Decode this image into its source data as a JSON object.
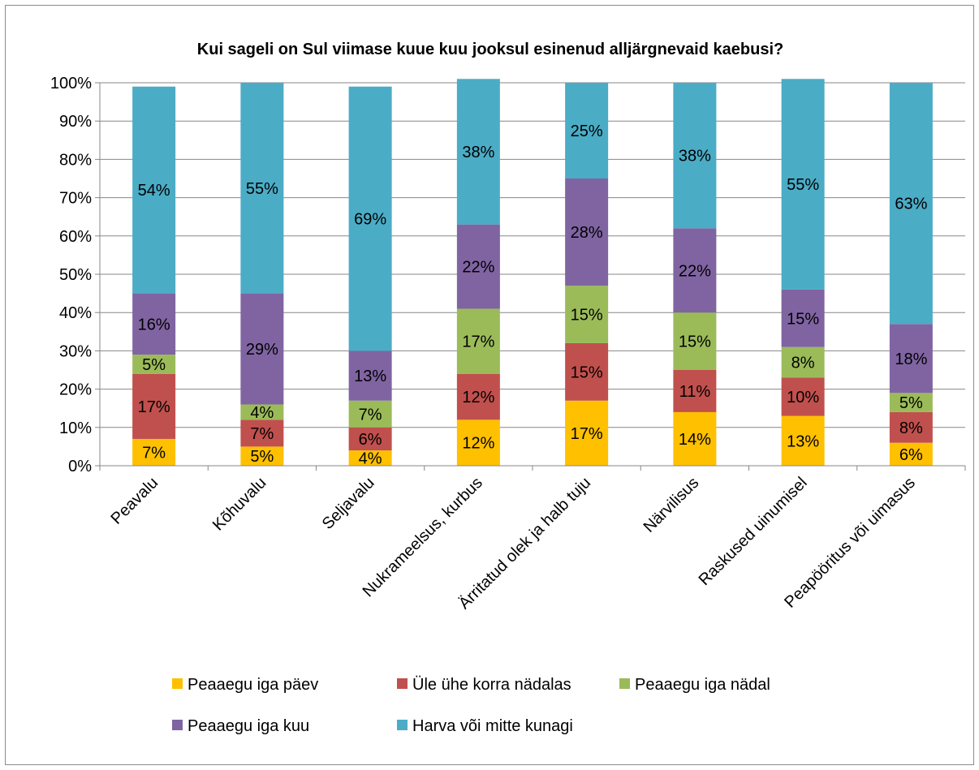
{
  "chart_data": {
    "type": "bar",
    "stacked": true,
    "title": "Kui sageli on Sul viimase kuue kuu jooksul esinenud alljärgnevaid kaebusi?",
    "categories": [
      "Peavalu",
      "Kõhuvalu",
      "Seljavalu",
      "Nukrameelsus, kurbus",
      "Ärritatud olek ja halb tuju",
      "Närvilisus",
      "Raskused uinumisel",
      "Peapööritus või uimasus"
    ],
    "ylim": [
      0,
      100
    ],
    "yticks": [
      "0%",
      "10%",
      "20%",
      "30%",
      "40%",
      "50%",
      "60%",
      "70%",
      "80%",
      "90%",
      "100%"
    ],
    "grid": true,
    "legend_position": "bottom",
    "series": [
      {
        "name": "Peaaegu iga päev",
        "color": "#ffc000",
        "values": [
          7,
          5,
          4,
          12,
          17,
          14,
          13,
          6
        ],
        "labels": [
          "7%",
          "5%",
          "4%",
          "12%",
          "17%",
          "14%",
          "13%",
          "6%"
        ]
      },
      {
        "name": "Üle ühe korra nädalas",
        "color": "#c0504d",
        "values": [
          17,
          7,
          6,
          12,
          15,
          11,
          10,
          8
        ],
        "labels": [
          "17%",
          "7%",
          "6%",
          "12%",
          "15%",
          "11%",
          "10%",
          "8%"
        ]
      },
      {
        "name": "Peaaegu iga nädal",
        "color": "#9bbb59",
        "values": [
          5,
          4,
          7,
          17,
          15,
          15,
          8,
          5
        ],
        "labels": [
          "5%",
          "4%",
          "7%",
          "17%",
          "15%",
          "15%",
          "8%",
          "5%"
        ]
      },
      {
        "name": "Peaaegu iga kuu",
        "color": "#8064a2",
        "values": [
          16,
          29,
          13,
          22,
          28,
          22,
          15,
          18
        ],
        "labels": [
          "16%",
          "29%",
          "13%",
          "22%",
          "28%",
          "22%",
          "15%",
          "18%"
        ]
      },
      {
        "name": "Harva või mitte kunagi",
        "color": "#4bacc6",
        "values": [
          54,
          55,
          69,
          38,
          25,
          38,
          55,
          63
        ],
        "labels": [
          "54%",
          "55%",
          "69%",
          "38%",
          "25%",
          "38%",
          "55%",
          "63%"
        ]
      }
    ]
  }
}
